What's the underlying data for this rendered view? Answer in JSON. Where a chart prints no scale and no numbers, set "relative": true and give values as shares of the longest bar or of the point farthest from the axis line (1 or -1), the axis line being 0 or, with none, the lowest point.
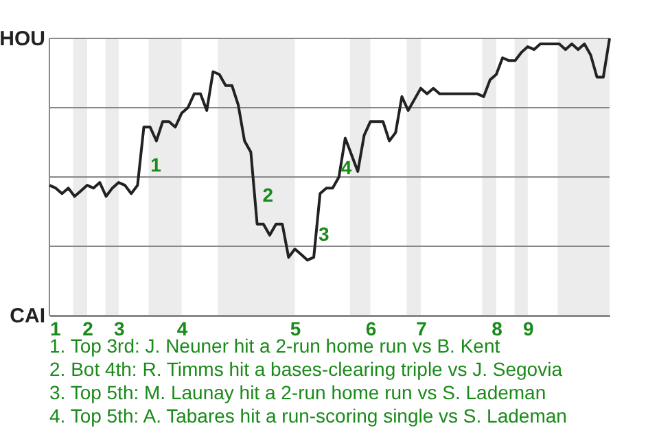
{
  "chart_data": {
    "type": "line",
    "relative": true,
    "categories": [
      "1",
      null,
      null,
      null,
      null,
      null,
      "2",
      null,
      null,
      null,
      null,
      "3",
      null,
      null,
      null,
      null,
      null,
      null,
      null,
      null,
      null,
      "4",
      null,
      null,
      null,
      null,
      null,
      null,
      null,
      null,
      null,
      null,
      null,
      null,
      null,
      null,
      null,
      null,
      null,
      "5",
      null,
      null,
      null,
      null,
      null,
      null,
      null,
      null,
      null,
      null,
      null,
      "6",
      null,
      null,
      null,
      null,
      null,
      null,
      null,
      "7",
      null,
      null,
      null,
      null,
      null,
      null,
      null,
      null,
      null,
      null,
      null,
      "8",
      null,
      null,
      null,
      null,
      "9",
      null,
      null,
      null,
      null,
      null,
      null,
      null,
      null,
      null,
      null,
      null,
      null,
      null
    ],
    "series": [
      {
        "color": "#222222",
        "values": [
          0.47,
          0.46,
          0.44,
          0.46,
          0.43,
          0.45,
          0.47,
          0.46,
          0.48,
          0.43,
          0.46,
          0.48,
          0.47,
          0.44,
          0.47,
          0.68,
          0.68,
          0.63,
          0.7,
          0.7,
          0.68,
          0.73,
          0.75,
          0.8,
          0.8,
          0.74,
          0.88,
          0.87,
          0.83,
          0.83,
          0.76,
          0.63,
          0.59,
          0.33,
          0.33,
          0.29,
          0.33,
          0.33,
          0.21,
          0.24,
          0.22,
          0.2,
          0.21,
          0.44,
          0.46,
          0.46,
          0.5,
          0.64,
          0.58,
          0.52,
          0.65,
          0.7,
          0.7,
          0.7,
          0.63,
          0.66,
          0.79,
          0.74,
          0.78,
          0.82,
          0.8,
          0.82,
          0.8,
          0.8,
          0.8,
          0.8,
          0.8,
          0.8,
          0.8,
          0.79,
          0.85,
          0.87,
          0.93,
          0.92,
          0.92,
          0.95,
          0.97,
          0.96,
          0.98,
          0.98,
          0.98,
          0.98,
          0.96,
          0.98,
          0.96,
          0.98,
          0.94,
          0.86,
          0.86,
          1
        ]
      }
    ],
    "grid": "y",
    "line_style": "solid",
    "annotations": [
      "HOU",
      "CAI",
      "1",
      "2",
      "3",
      "4",
      "1. Top 3rd: J. Neuner hit a 2-run home run vs B. Kent",
      "2. Bot 4th: R. Timms hit a bases-clearing triple vs J. Segovia",
      "3. Top 5th: M. Launay hit a 2-run home run vs S. Lademan",
      "4. Top 5th: A. Tabares hit a run-scoring single vs S. Lademan"
    ]
  }
}
